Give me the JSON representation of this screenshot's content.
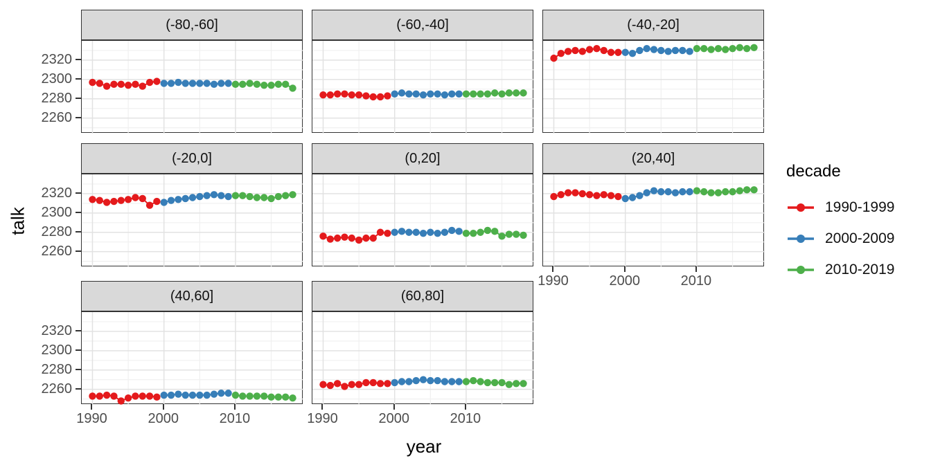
{
  "chart_data": {
    "type": "scatter",
    "title": "",
    "xlabel": "year",
    "ylabel": "talk",
    "legend_title": "decade",
    "legend_position": "right",
    "grid": true,
    "x_ticks": [
      1990,
      2000,
      2010
    ],
    "x_minor_ticks": [
      1995,
      2005,
      2015
    ],
    "y_ticks": [
      2260,
      2280,
      2300,
      2320
    ],
    "y_minor_ticks": [
      2250,
      2270,
      2290,
      2310,
      2330
    ],
    "x_domain": [
      1988.5,
      2019.5
    ],
    "y_domain": [
      2244,
      2340
    ],
    "series": [
      {
        "name": "1990-1999",
        "color": "#E41A1C",
        "start_year": 1990
      },
      {
        "name": "2000-2009",
        "color": "#377EB8",
        "start_year": 2000
      },
      {
        "name": "2010-2019",
        "color": "#4DAF4A",
        "start_year": 2010
      }
    ],
    "facets": [
      {
        "label": "(-80,-60]",
        "values": {
          "1990-1999": [
            2297,
            2296,
            2293,
            2295,
            2295,
            2294,
            2295,
            2293,
            2297,
            2298
          ],
          "2000-2009": [
            2296,
            2296,
            2297,
            2296,
            2296,
            2296,
            2296,
            2295,
            2296,
            2296
          ],
          "2010-2019": [
            2295,
            2295,
            2296,
            2295,
            2294,
            2294,
            2295,
            2295,
            2291
          ]
        }
      },
      {
        "label": "(-60,-40]",
        "values": {
          "1990-1999": [
            2284,
            2284,
            2285,
            2285,
            2284,
            2284,
            2283,
            2282,
            2282,
            2283
          ],
          "2000-2009": [
            2285,
            2286,
            2285,
            2285,
            2284,
            2285,
            2285,
            2284,
            2285,
            2285
          ],
          "2010-2019": [
            2285,
            2285,
            2285,
            2285,
            2286,
            2285,
            2286,
            2286,
            2286
          ]
        }
      },
      {
        "label": "(-40,-20]",
        "values": {
          "1990-1999": [
            2322,
            2327,
            2329,
            2330,
            2329,
            2331,
            2332,
            2330,
            2328,
            2328
          ],
          "2000-2009": [
            2328,
            2327,
            2330,
            2332,
            2331,
            2330,
            2329,
            2330,
            2330,
            2329
          ],
          "2010-2019": [
            2332,
            2332,
            2331,
            2332,
            2331,
            2332,
            2333,
            2332,
            2333
          ]
        }
      },
      {
        "label": "(-20,0]",
        "values": {
          "1990-1999": [
            2314,
            2313,
            2311,
            2312,
            2313,
            2314,
            2316,
            2315,
            2308,
            2312
          ],
          "2000-2009": [
            2311,
            2313,
            2314,
            2315,
            2316,
            2317,
            2318,
            2319,
            2318,
            2317
          ],
          "2010-2019": [
            2318,
            2318,
            2317,
            2316,
            2316,
            2315,
            2317,
            2318,
            2319
          ]
        }
      },
      {
        "label": "(0,20]",
        "values": {
          "1990-1999": [
            2276,
            2273,
            2274,
            2275,
            2274,
            2272,
            2274,
            2274,
            2280,
            2279
          ],
          "2000-2009": [
            2280,
            2281,
            2280,
            2280,
            2279,
            2280,
            2279,
            2280,
            2282,
            2281
          ],
          "2010-2019": [
            2279,
            2279,
            2280,
            2282,
            2281,
            2276,
            2278,
            2278,
            2277
          ]
        }
      },
      {
        "label": "(20,40]",
        "values": {
          "1990-1999": [
            2317,
            2319,
            2321,
            2321,
            2320,
            2319,
            2318,
            2319,
            2318,
            2317
          ],
          "2000-2009": [
            2315,
            2316,
            2318,
            2321,
            2323,
            2322,
            2322,
            2321,
            2322,
            2322
          ],
          "2010-2019": [
            2323,
            2322,
            2321,
            2321,
            2322,
            2322,
            2323,
            2324,
            2324
          ]
        }
      },
      {
        "label": "(40,60]",
        "values": {
          "1990-1999": [
            2253,
            2253,
            2254,
            2253,
            2248,
            2251,
            2253,
            2253,
            2253,
            2252
          ],
          "2000-2009": [
            2254,
            2254,
            2255,
            2254,
            2254,
            2254,
            2254,
            2255,
            2256,
            2256
          ],
          "2010-2019": [
            2254,
            2253,
            2253,
            2253,
            2253,
            2252,
            2252,
            2252,
            2251
          ]
        }
      },
      {
        "label": "(60,80]",
        "values": {
          "1990-1999": [
            2265,
            2264,
            2266,
            2263,
            2265,
            2265,
            2267,
            2267,
            2266,
            2266
          ],
          "2000-2009": [
            2267,
            2268,
            2268,
            2269,
            2270,
            2269,
            2269,
            2268,
            2268,
            2268
          ],
          "2010-2019": [
            2268,
            2269,
            2268,
            2267,
            2267,
            2267,
            2265,
            2266,
            2266
          ]
        }
      }
    ]
  }
}
